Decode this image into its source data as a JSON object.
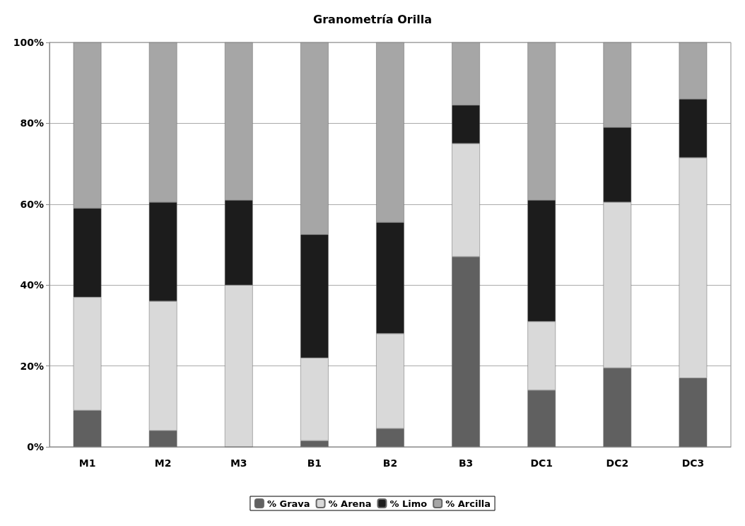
{
  "chart_data": {
    "type": "bar",
    "title": "Granometría Orilla",
    "categories": [
      "M1",
      "M2",
      "M3",
      "B1",
      "B2",
      "B3",
      "DC1",
      "DC2",
      "DC3"
    ],
    "stacked": true,
    "series": [
      {
        "name": "% Grava",
        "color": "#606060",
        "values": [
          9,
          4,
          0,
          1.5,
          4.5,
          47,
          14,
          19.5,
          17
        ]
      },
      {
        "name": "% Arena",
        "color": "#d9d9d9",
        "values": [
          28,
          32,
          40,
          20.5,
          23.5,
          28,
          17,
          41,
          54.5
        ]
      },
      {
        "name": "% Limo",
        "color": "#1c1c1c",
        "values": [
          22,
          24.5,
          21,
          30.5,
          27.5,
          9.5,
          30,
          18.5,
          14.5
        ]
      },
      {
        "name": "% Arcilla",
        "color": "#a6a6a6",
        "values": [
          41,
          39.5,
          39,
          47.5,
          44.5,
          15.5,
          39,
          21,
          14
        ]
      }
    ],
    "ylim": [
      0,
      100
    ],
    "yticks": [
      {
        "value": 0,
        "label": "0%"
      },
      {
        "value": 20,
        "label": "20%"
      },
      {
        "value": 40,
        "label": "40%"
      },
      {
        "value": 60,
        "label": "60%"
      },
      {
        "value": 80,
        "label": "80%"
      },
      {
        "value": 100,
        "label": "100%"
      }
    ],
    "grid": "y",
    "legend": "bottom"
  }
}
